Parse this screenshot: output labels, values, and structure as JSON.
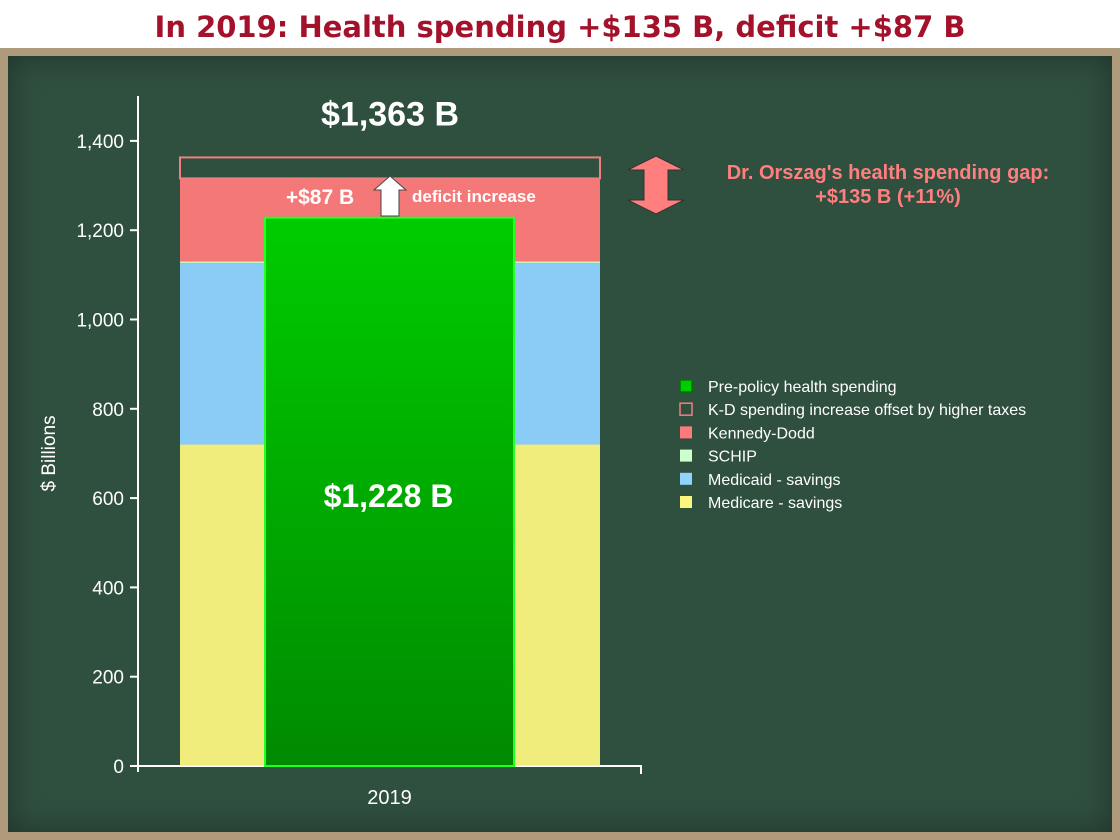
{
  "title": "In 2019:  Health spending +$135 B, deficit +$87 B",
  "colors": {
    "pre_policy": "#00cc00",
    "kd_offset_outline": "#f08080",
    "kennedy_dodd": "#ff7a7a",
    "schip": "#ccffcc",
    "medicaid": "#8fd3ff",
    "medicare": "#fbf57f",
    "annotation": "#ff7f7f",
    "board": "#2f4f3f",
    "frame": "#b09a7c",
    "title": "#a3122a"
  },
  "chart_data": {
    "type": "bar",
    "categories": [
      "2019"
    ],
    "ylabel": "$ Billions",
    "xlabel": "",
    "ylim": [
      0,
      1500
    ],
    "yticks": [
      0,
      200,
      400,
      600,
      800,
      1000,
      1200,
      1400
    ],
    "ytick_labels": [
      "0",
      "200",
      "400",
      "600",
      "800",
      "1,000",
      "1,200",
      "1,400"
    ],
    "stacked_series": [
      {
        "name": "Medicare - savings",
        "values": [
          720
        ]
      },
      {
        "name": "Medicaid - savings",
        "values": [
          406
        ]
      },
      {
        "name": "SCHIP",
        "values": [
          4
        ]
      },
      {
        "name": "Kennedy-Dodd",
        "values": [
          186
        ]
      },
      {
        "name": "K-D spending increase offset by higher taxes",
        "values": [
          47
        ]
      }
    ],
    "overlay_series": {
      "name": "Pre-policy health spending",
      "values": [
        1228
      ]
    },
    "legend": [
      "Pre-policy health spending",
      "K-D spending increase offset by higher taxes",
      "Kennedy-Dodd",
      "SCHIP",
      "Medicaid - savings",
      "Medicare - savings"
    ],
    "legend_position": "right",
    "grid": false,
    "annotations": {
      "total_label": "$1,363 B",
      "pre_policy_label": "$1,228 B",
      "deficit_amount": "+$87 B",
      "deficit_text": "deficit increase",
      "gap_line1": "Dr. Orszag's health spending gap:",
      "gap_line2": "+$135 B (+11%)"
    }
  }
}
